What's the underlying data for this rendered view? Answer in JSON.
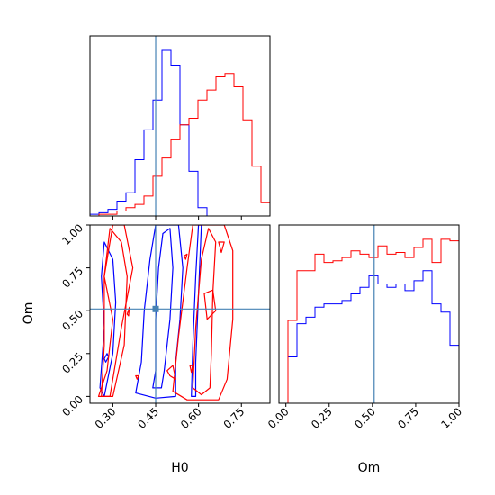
{
  "chart_data": {
    "type": "corner-plot",
    "parameters": [
      "H0",
      "Om"
    ],
    "truths": {
      "H0": 0.45,
      "Om": 0.51
    },
    "colors": {
      "series_a": "#0000ff",
      "series_b": "#ff0000",
      "truth": "#4682b4"
    },
    "h0_axis": {
      "label": "H0",
      "range": [
        0.22,
        0.85
      ],
      "ticks": [
        "0.30",
        "0.45",
        "0.60",
        "0.75"
      ],
      "tick_values": [
        0.3,
        0.45,
        0.6,
        0.75
      ]
    },
    "om_axis": {
      "label": "Om",
      "range": [
        -0.04,
        1.0
      ],
      "ticks": [
        "0.00",
        "0.25",
        "0.50",
        "0.75",
        "1.00"
      ],
      "tick_values": [
        0.0,
        0.25,
        0.5,
        0.75,
        1.0
      ]
    },
    "h0_histogram": {
      "bin_edges": [
        0.22,
        0.2515,
        0.283,
        0.3145,
        0.346,
        0.3775,
        0.409,
        0.4405,
        0.472,
        0.5035,
        0.535,
        0.5665,
        0.598,
        0.6295,
        0.661,
        0.6925,
        0.724,
        0.7555,
        0.787,
        0.8185,
        0.85
      ],
      "series": [
        {
          "color": "#0000ff",
          "counts": [
            1,
            2,
            4,
            9,
            14,
            34,
            52,
            70,
            100,
            91,
            55,
            27,
            5,
            0,
            0,
            0,
            0,
            0,
            0,
            0
          ]
        },
        {
          "color": "#ff0000",
          "counts": [
            0,
            1,
            1,
            3,
            5,
            7,
            12,
            24,
            35,
            46,
            55,
            59,
            70,
            76,
            84,
            86,
            78,
            58,
            30,
            8
          ]
        }
      ]
    },
    "om_histogram": {
      "bin_edges": [
        -0.04,
        0.012,
        0.064,
        0.116,
        0.168,
        0.22,
        0.272,
        0.324,
        0.376,
        0.428,
        0.48,
        0.532,
        0.584,
        0.636,
        0.688,
        0.74,
        0.792,
        0.844,
        0.896,
        0.948,
        1.0
      ],
      "series": [
        {
          "color": "#0000ff",
          "counts": [
            0,
            28,
            48,
            52,
            58,
            60,
            60,
            62,
            66,
            70,
            77,
            72,
            70,
            72,
            68,
            74,
            80,
            60,
            55,
            35
          ]
        },
        {
          "color": "#ff0000",
          "counts": [
            0,
            50,
            80,
            80,
            90,
            85,
            86,
            88,
            92,
            90,
            88,
            95,
            90,
            91,
            88,
            94,
            99,
            85,
            99,
            98
          ]
        }
      ]
    },
    "contours": [
      {
        "color": "#0000ff",
        "polygons": [
          [
            [
              0.44,
              0.05
            ],
            [
              0.45,
              0.15
            ],
            [
              0.45,
              0.45
            ],
            [
              0.46,
              0.75
            ],
            [
              0.475,
              0.95
            ],
            [
              0.5,
              0.98
            ],
            [
              0.51,
              0.75
            ],
            [
              0.5,
              0.45
            ],
            [
              0.48,
              0.15
            ],
            [
              0.47,
              0.05
            ]
          ],
          [
            [
              0.38,
              0.02
            ],
            [
              0.4,
              0.2
            ],
            [
              0.41,
              0.5
            ],
            [
              0.43,
              0.8
            ],
            [
              0.45,
              1.0
            ],
            [
              0.53,
              1.0
            ],
            [
              0.545,
              0.75
            ],
            [
              0.535,
              0.45
            ],
            [
              0.52,
              0.2
            ],
            [
              0.52,
              0.0
            ],
            [
              0.45,
              -0.01
            ]
          ],
          [
            [
              0.27,
              0.0
            ],
            [
              0.3,
              0.25
            ],
            [
              0.31,
              0.55
            ],
            [
              0.3,
              0.8
            ],
            [
              0.27,
              0.9
            ],
            [
              0.26,
              0.7
            ],
            [
              0.27,
              0.4
            ],
            [
              0.255,
              0.05
            ]
          ],
          [
            [
              0.575,
              0.0
            ],
            [
              0.58,
              0.3
            ],
            [
              0.59,
              0.7
            ],
            [
              0.6,
              1.0
            ],
            [
              0.61,
              1.0
            ],
            [
              0.6,
              0.6
            ],
            [
              0.59,
              0.2
            ],
            [
              0.59,
              0.0
            ]
          ],
          [
            [
              0.275,
              0.2
            ],
            [
              0.285,
              0.23
            ],
            [
              0.28,
              0.25
            ],
            [
              0.27,
              0.22
            ]
          ]
        ]
      },
      {
        "color": "#ff0000",
        "polygons": [
          [
            [
              0.58,
              0.05
            ],
            [
              0.59,
              0.4
            ],
            [
              0.61,
              0.8
            ],
            [
              0.635,
              0.98
            ],
            [
              0.66,
              0.9
            ],
            [
              0.65,
              0.6
            ],
            [
              0.645,
              0.25
            ],
            [
              0.64,
              0.05
            ],
            [
              0.61,
              0.01
            ]
          ],
          [
            [
              0.51,
              0.03
            ],
            [
              0.53,
              0.35
            ],
            [
              0.56,
              0.75
            ],
            [
              0.58,
              1.0
            ],
            [
              0.69,
              1.0
            ],
            [
              0.72,
              0.85
            ],
            [
              0.72,
              0.45
            ],
            [
              0.7,
              0.1
            ],
            [
              0.67,
              -0.02
            ],
            [
              0.56,
              -0.02
            ]
          ],
          [
            [
              0.3,
              0.0
            ],
            [
              0.34,
              0.3
            ],
            [
              0.35,
              0.7
            ],
            [
              0.33,
              0.9
            ],
            [
              0.29,
              0.98
            ],
            [
              0.27,
              0.7
            ],
            [
              0.3,
              0.45
            ],
            [
              0.28,
              0.15
            ],
            [
              0.25,
              0.0
            ]
          ],
          [
            [
              0.29,
              0.0
            ],
            [
              0.33,
              0.4
            ],
            [
              0.37,
              0.75
            ],
            [
              0.34,
              1.0
            ],
            [
              0.3,
              1.0
            ],
            [
              0.27,
              0.7
            ],
            [
              0.27,
              0.3
            ],
            [
              0.26,
              0.0
            ]
          ],
          [
            [
              0.49,
              0.15
            ],
            [
              0.5,
              0.12
            ],
            [
              0.52,
              0.1
            ],
            [
              0.51,
              0.18
            ]
          ],
          [
            [
              0.38,
              0.12
            ],
            [
              0.385,
              0.1
            ],
            [
              0.39,
              0.12
            ]
          ],
          [
            [
              0.35,
              0.48
            ],
            [
              0.355,
              0.47
            ],
            [
              0.358,
              0.52
            ]
          ],
          [
            [
              0.57,
              0.18
            ],
            [
              0.575,
              0.14
            ],
            [
              0.58,
              0.18
            ]
          ],
          [
            [
              0.55,
              0.82
            ],
            [
              0.555,
              0.8
            ],
            [
              0.56,
              0.83
            ]
          ],
          [
            [
              0.67,
              0.9
            ],
            [
              0.68,
              0.84
            ],
            [
              0.69,
              0.9
            ]
          ],
          [
            [
              0.62,
              0.6
            ],
            [
              0.65,
              0.62
            ],
            [
              0.66,
              0.5
            ],
            [
              0.63,
              0.45
            ]
          ]
        ]
      }
    ]
  }
}
